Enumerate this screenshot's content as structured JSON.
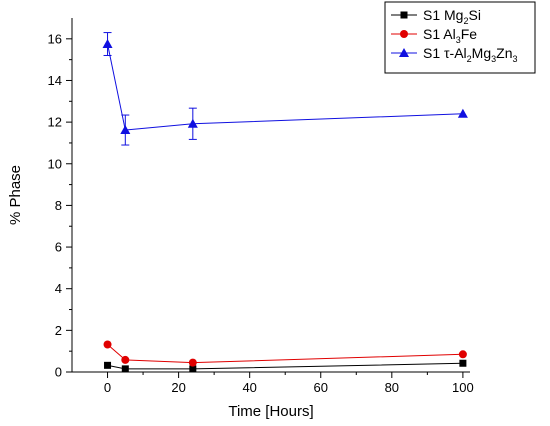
{
  "chart_data": {
    "type": "line",
    "xlabel": "Time [Hours]",
    "ylabel": "% Phase",
    "xlim": [
      -10,
      102
    ],
    "ylim": [
      0,
      17
    ],
    "xticks": [
      0,
      20,
      40,
      60,
      80,
      100
    ],
    "yticks": [
      0,
      2,
      4,
      6,
      8,
      10,
      12,
      14,
      16
    ],
    "grid": false,
    "legend_position": "top-right",
    "series": [
      {
        "name": "S1 Mg2Si",
        "name_parts": [
          [
            "S1 Mg",
            false
          ],
          [
            "2",
            true
          ],
          [
            "Si",
            false
          ]
        ],
        "color": "#000000",
        "marker": "square",
        "x": [
          0,
          5,
          24,
          100
        ],
        "y": [
          0.32,
          0.15,
          0.15,
          0.42
        ]
      },
      {
        "name": "S1 Al3Fe",
        "name_parts": [
          [
            "S1 Al",
            false
          ],
          [
            "3",
            true
          ],
          [
            "Fe",
            false
          ]
        ],
        "color": "#e00000",
        "marker": "circle",
        "x": [
          0,
          5,
          24,
          100
        ],
        "y": [
          1.32,
          0.58,
          0.45,
          0.85
        ]
      },
      {
        "name": "S1 τ-Al2Mg3Zn3",
        "name_parts": [
          [
            "S1 τ-Al",
            false
          ],
          [
            "2",
            true
          ],
          [
            "Mg",
            false
          ],
          [
            "3",
            true
          ],
          [
            "Zn",
            false
          ],
          [
            "3",
            true
          ]
        ],
        "color": "#1010e0",
        "marker": "triangle",
        "x": [
          0,
          5,
          24,
          100
        ],
        "y": [
          15.75,
          11.62,
          11.92,
          12.4
        ],
        "yerr": [
          0.55,
          0.72,
          0.75,
          0.0
        ]
      }
    ]
  }
}
